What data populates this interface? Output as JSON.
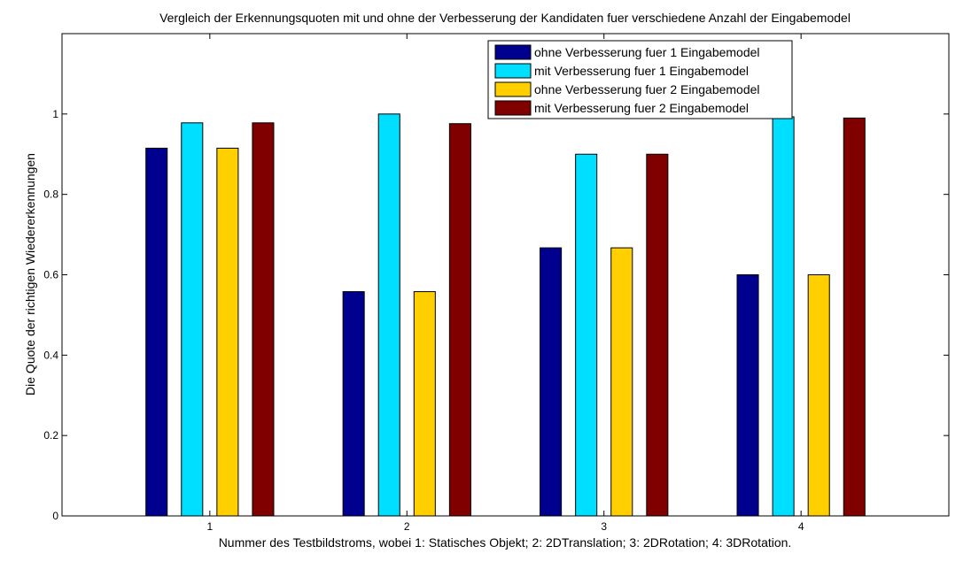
{
  "chart_data": {
    "type": "bar",
    "title": "Vergleich der Erkennungsquoten mit und ohne der Verbesserung der Kandidaten fuer verschiedene Anzahl der Eingabemodel",
    "xlabel": "Nummer des Testbildstroms, wobei 1: Statisches Objekt; 2: 2DTranslation; 3: 2DRotation; 4: 3DRotation.",
    "ylabel": "Die Quote der richtigen Wiedererkennungen",
    "categories": [
      "1",
      "2",
      "3",
      "4"
    ],
    "y_ticks": [
      "0",
      "0.2",
      "0.4",
      "0.6",
      "0.8",
      "1"
    ],
    "ylim": [
      0,
      1.2
    ],
    "legend_position": "top-right",
    "grid": false,
    "series": [
      {
        "name": "ohne Verbesserung fuer 1 Eingabemodel",
        "color": "#00008f",
        "values": [
          0.915,
          0.558,
          0.667,
          0.6
        ]
      },
      {
        "name": "mit Verbesserung fuer 1 Eingabemodel",
        "color": "#00dfff",
        "values": [
          0.978,
          1.0,
          0.9,
          0.993
        ]
      },
      {
        "name": "ohne Verbesserung fuer 2 Eingabemodel",
        "color": "#ffcf00",
        "values": [
          0.915,
          0.558,
          0.667,
          0.6
        ]
      },
      {
        "name": "mit Verbesserung fuer 2 Eingabemodel",
        "color": "#800000",
        "values": [
          0.978,
          0.976,
          0.9,
          0.99
        ]
      }
    ]
  }
}
